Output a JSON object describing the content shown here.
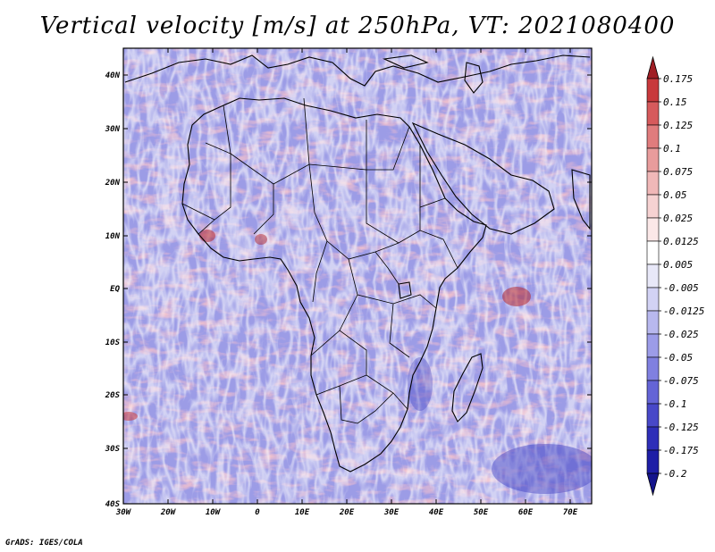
{
  "title": "Vertical velocity [m/s] at 250hPa, VT: 2021080400",
  "footer": "GrADS: IGES/COLA",
  "map": {
    "lat_labels": [
      "40N",
      "30N",
      "20N",
      "10N",
      "EQ",
      "10S",
      "20S",
      "30S",
      "40S"
    ],
    "lon_labels": [
      "30W",
      "20W",
      "10W",
      "0",
      "10E",
      "20E",
      "30E",
      "40E",
      "50E",
      "60E",
      "70E"
    ],
    "field_colors": {
      "ascent": "#e8a0a4",
      "descent": "#9898e8",
      "neutral": "#ffffff",
      "coast": "#000000"
    }
  },
  "colorbar": {
    "levels": [
      "0.175",
      "0.15",
      "0.125",
      "0.1",
      "0.075",
      "0.05",
      "0.025",
      "0.0125",
      "0.005",
      "-0.005",
      "-0.0125",
      "-0.025",
      "-0.05",
      "-0.075",
      "-0.1",
      "-0.125",
      "-0.175",
      "-0.2"
    ],
    "colors": [
      "#b4282d",
      "#c8393c",
      "#d65a5c",
      "#e07c7d",
      "#e89c9c",
      "#f0b8b8",
      "#f6d2d2",
      "#fbe8e8",
      "#ffffff",
      "#e8e8f8",
      "#d2d2f4",
      "#b8b8ee",
      "#9c9ce8",
      "#8080e0",
      "#6464d6",
      "#4848c8",
      "#2e2eb8",
      "#1e1ea6"
    ],
    "top_arrow_color": "#a01e24",
    "bottom_arrow_color": "#14148c"
  }
}
